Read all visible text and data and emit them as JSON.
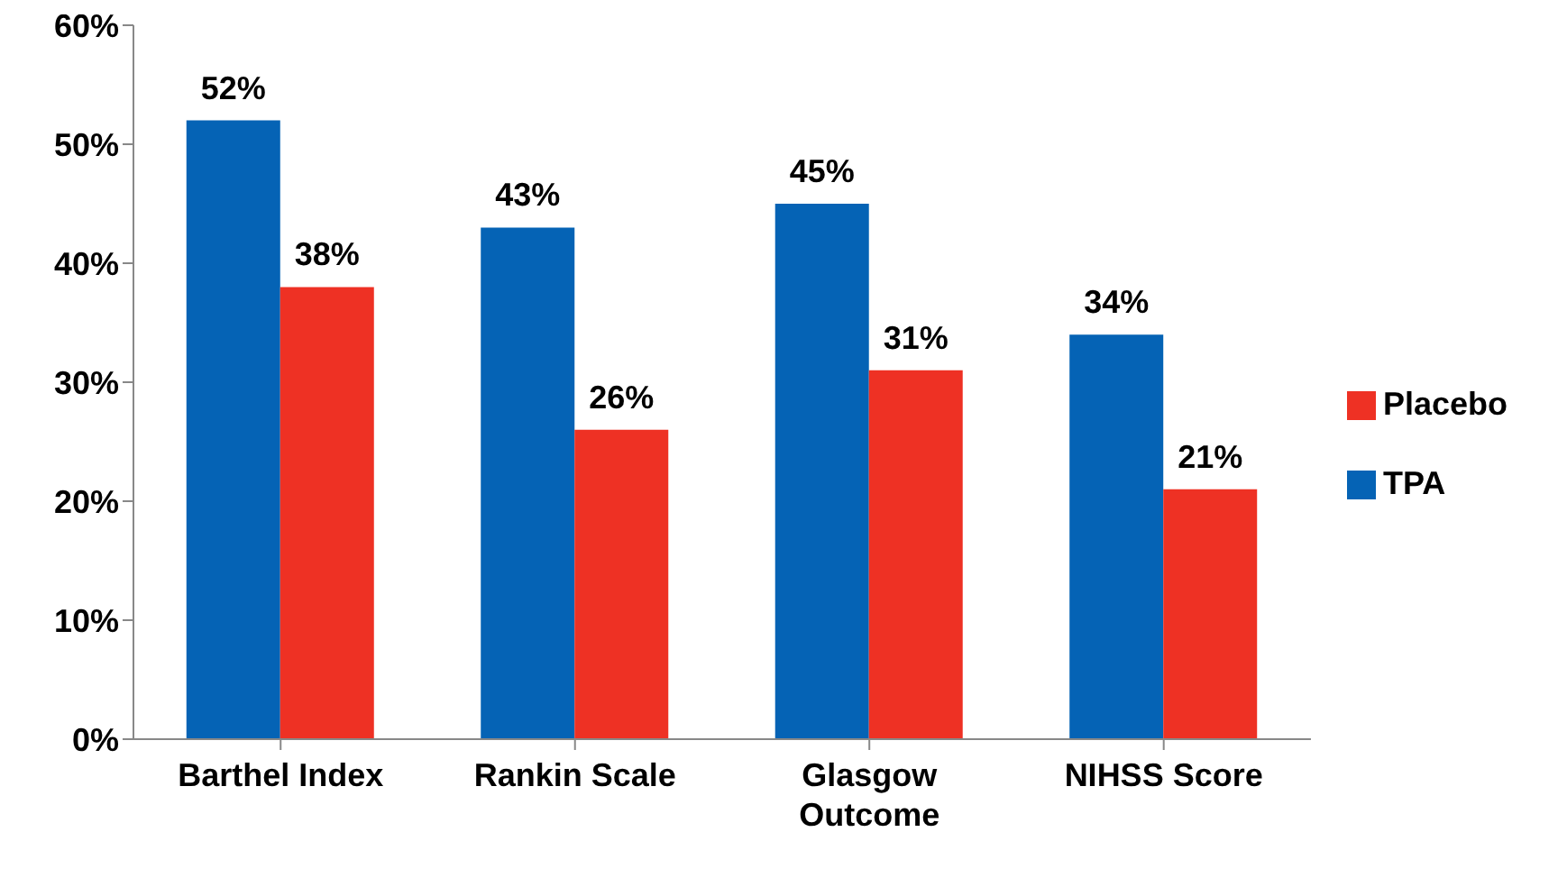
{
  "chart_data": {
    "type": "bar",
    "categories": [
      "Barthel Index",
      "Rankin Scale",
      "Glasgow Outcome",
      "NIHSS Score"
    ],
    "series": [
      {
        "name": "TPA",
        "color": "#0563b5",
        "values": [
          52,
          43,
          45,
          34
        ],
        "value_labels": [
          "52%",
          "43%",
          "45%",
          "34%"
        ]
      },
      {
        "name": "Placebo",
        "color": "#ee3124",
        "values": [
          38,
          26,
          31,
          21
        ],
        "value_labels": [
          "38%",
          "26%",
          "31%",
          "21%"
        ]
      }
    ],
    "ylim": [
      0,
      60
    ],
    "yticks": [
      {
        "value": 0,
        "label": "0%"
      },
      {
        "value": 10,
        "label": "10%"
      },
      {
        "value": 20,
        "label": "20%"
      },
      {
        "value": 30,
        "label": "30%"
      },
      {
        "value": 40,
        "label": "40%"
      },
      {
        "value": 50,
        "label": "50%"
      },
      {
        "value": 60,
        "label": "60%"
      }
    ],
    "grid": false,
    "legend": "right"
  }
}
